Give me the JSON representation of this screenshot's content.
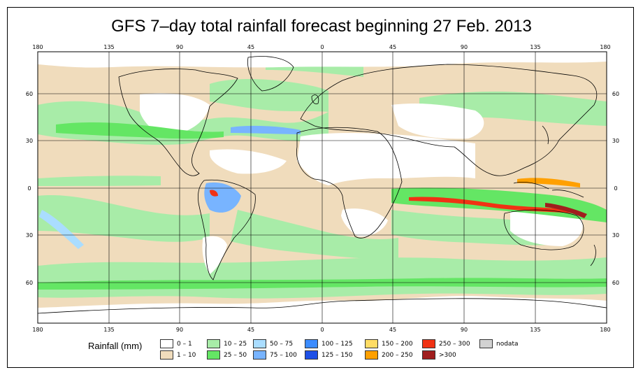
{
  "title": "GFS 7–day total rainfall forecast beginning 27 Feb. 2013",
  "axes": {
    "lon_ticks": [
      "180",
      "135",
      "90",
      "45",
      "0",
      "45",
      "90",
      "135",
      "180"
    ],
    "lat_ticks": [
      "60",
      "30",
      "0",
      "30",
      "60"
    ]
  },
  "legend": {
    "title": "Rainfall (mm)",
    "items": [
      {
        "label": "0 – 1",
        "color": "#ffffff"
      },
      {
        "label": "1 – 10",
        "color": "#f0dcbc"
      },
      {
        "label": "10 – 25",
        "color": "#a8eca8"
      },
      {
        "label": "25 – 50",
        "color": "#64e664"
      },
      {
        "label": "50 – 75",
        "color": "#aaddff"
      },
      {
        "label": "75 – 100",
        "color": "#78b4ff"
      },
      {
        "label": "100 – 125",
        "color": "#3c8cff"
      },
      {
        "label": "125 – 150",
        "color": "#1e50e6"
      },
      {
        "label": "150 – 200",
        "color": "#ffdc64"
      },
      {
        "label": "200 – 250",
        "color": "#ffa000"
      },
      {
        "label": "250 – 300",
        "color": "#f03214"
      },
      {
        "label": ">300",
        "color": "#a01e1e"
      },
      {
        "label": "nodata",
        "color": "#d2d2d2"
      }
    ]
  },
  "colors": {
    "ocean_base": "#f0dcbc",
    "land_dry": "#ffffff",
    "coast": "#000000",
    "grid": "#000000"
  }
}
